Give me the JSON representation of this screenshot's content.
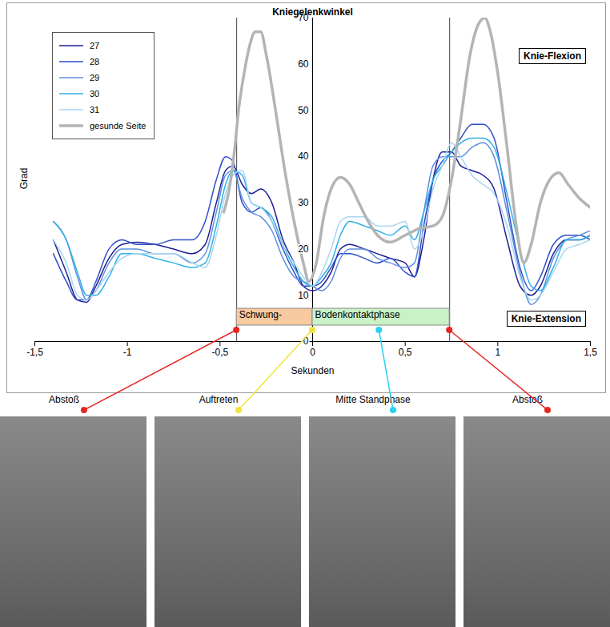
{
  "chart_data": {
    "type": "line",
    "title": "Kniegelenkwinkel",
    "x_label": "Sekunden",
    "y_label": "Grad",
    "x": [
      -1.4,
      -1.33,
      -1.27,
      -1.22,
      -1.17,
      -1.1,
      -1.03,
      -0.95,
      -0.85,
      -0.75,
      -0.65,
      -0.58,
      -0.52,
      -0.47,
      -0.43,
      -0.38,
      -0.33,
      -0.28,
      -0.22,
      -0.16,
      -0.1,
      -0.05,
      0,
      0.05,
      0.1,
      0.15,
      0.2,
      0.28,
      0.35,
      0.42,
      0.5,
      0.55,
      0.6,
      0.65,
      0.7,
      0.75,
      0.8,
      0.86,
      0.92,
      0.98,
      1.05,
      1.12,
      1.18,
      1.23,
      1.3,
      1.37,
      1.44,
      1.5
    ],
    "series": [
      {
        "name": "27",
        "color": "#1e1e96",
        "line_style": "solid",
        "values": [
          22,
          15,
          9,
          8.5,
          12,
          18,
          21,
          21.5,
          21,
          20,
          19,
          21,
          30,
          37,
          38,
          34,
          32,
          33,
          30,
          22,
          17,
          12,
          11,
          12,
          15,
          20,
          21,
          20,
          19,
          18,
          17,
          14,
          22,
          35,
          41,
          41,
          38,
          37,
          36,
          33,
          22,
          12,
          10,
          12,
          19,
          22,
          22,
          23
        ]
      },
      {
        "name": "28",
        "color": "#2f4fc8",
        "line_style": "solid",
        "values": [
          19,
          13,
          9,
          9,
          13,
          20,
          22,
          21,
          21,
          22,
          22,
          26,
          35,
          40,
          39,
          30,
          28,
          29,
          26,
          20,
          15,
          12,
          12,
          13,
          16,
          19,
          19,
          18,
          17,
          18,
          15,
          14,
          25,
          35,
          39,
          41,
          44,
          47,
          47,
          44,
          30,
          16,
          11,
          14,
          21,
          23,
          23,
          22
        ]
      },
      {
        "name": "29",
        "color": "#5f8fe0",
        "line_style": "solid",
        "values": [
          26,
          22,
          14,
          9,
          11,
          17,
          20,
          20,
          19,
          19,
          17,
          19,
          28,
          36,
          37,
          31,
          28,
          27,
          24,
          18,
          14,
          13,
          12,
          11,
          13,
          18,
          20,
          20,
          18,
          17,
          16,
          17,
          28,
          38,
          40,
          40,
          40,
          42,
          43,
          40,
          28,
          15,
          8,
          10,
          18,
          22,
          23,
          24
        ]
      },
      {
        "name": "30",
        "color": "#2fb0e6",
        "line_style": "solid",
        "values": [
          26,
          22,
          15,
          10,
          10,
          14,
          19,
          19,
          18,
          17,
          16,
          17,
          25,
          34,
          37,
          36,
          30,
          29,
          27,
          21,
          16,
          13,
          12,
          14,
          17,
          23,
          26,
          25,
          24,
          23,
          25,
          22,
          28,
          35,
          38,
          41,
          43,
          44,
          44,
          42,
          32,
          20,
          12,
          11,
          16,
          22,
          22,
          23
        ]
      },
      {
        "name": "31",
        "color": "#a8d6f2",
        "line_style": "solid",
        "values": [
          22,
          17,
          10,
          9,
          11,
          15,
          18,
          19,
          19,
          19,
          17,
          16,
          23,
          32,
          36,
          37,
          30,
          29,
          26,
          21,
          17,
          14,
          12,
          15,
          20,
          26,
          27,
          27,
          25,
          25,
          26,
          20,
          24,
          33,
          38,
          43,
          40,
          36,
          34,
          32,
          25,
          14,
          9,
          10,
          15,
          20,
          21,
          22
        ]
      },
      {
        "name": "gesunde Seite",
        "color": "#b4b4b4",
        "line_style": "thick",
        "x": [
          -0.48,
          -0.45,
          -0.42,
          -0.4,
          -0.37,
          -0.34,
          -0.31,
          -0.28,
          -0.25,
          -0.2,
          -0.15,
          -0.1,
          -0.05,
          -0.02,
          0.02,
          0.06,
          0.1,
          0.15,
          0.2,
          0.25,
          0.3,
          0.35,
          0.42,
          0.5,
          0.58,
          0.65,
          0.7,
          0.75,
          0.8,
          0.85,
          0.9,
          0.93,
          0.96,
          1.0,
          1.05,
          1.1,
          1.14,
          1.18,
          1.23,
          1.28,
          1.33,
          1.38,
          1.44,
          1.5
        ],
        "values": [
          28,
          33,
          42,
          50,
          58,
          64,
          67,
          67,
          62,
          50,
          37,
          26,
          17,
          13,
          17,
          27,
          33,
          35.5,
          34,
          30,
          26,
          23,
          21.5,
          23,
          24.5,
          25,
          27,
          35,
          48,
          62,
          69,
          70,
          67,
          58,
          42,
          25,
          17,
          21,
          30,
          35,
          36.5,
          34,
          31,
          29
        ]
      }
    ],
    "xlim": [
      -1.5,
      1.5
    ],
    "xticks": [
      {
        "value": -1.5,
        "label": "-1,5"
      },
      -1,
      {
        "value": -0.5,
        "label": "-0,5"
      },
      0,
      {
        "value": 0.5,
        "label": "0,5"
      },
      1,
      {
        "value": 1.5,
        "label": "1,5"
      }
    ],
    "ylim": [
      0,
      70
    ],
    "yticks": [
      0,
      10,
      20,
      30,
      40,
      50,
      60,
      70
    ],
    "grid": false,
    "legend": "top-left",
    "annotations": [
      "Knie-Flexion",
      "Knie-Extension"
    ],
    "vertical_lines": [
      -0.41,
      0.74
    ],
    "phases": [
      {
        "label": "Schwung-",
        "start": -0.41,
        "end": 0,
        "color": "#f9c9a0"
      },
      {
        "label": "Bodenkontaktphase",
        "start": 0,
        "end": 0.74,
        "color": "#c9f2c6"
      }
    ],
    "events": [
      {
        "label": "Abstoß",
        "x": -0.41,
        "color": "#e8261f"
      },
      {
        "label": "Auftreten",
        "x": 0,
        "color": "#f2e43a"
      },
      {
        "label": "Mitte Standphase",
        "x": 0.36,
        "color": "#27d3f0"
      },
      {
        "label": "Abstoß",
        "x": 0.74,
        "color": "#e8261f"
      }
    ]
  }
}
